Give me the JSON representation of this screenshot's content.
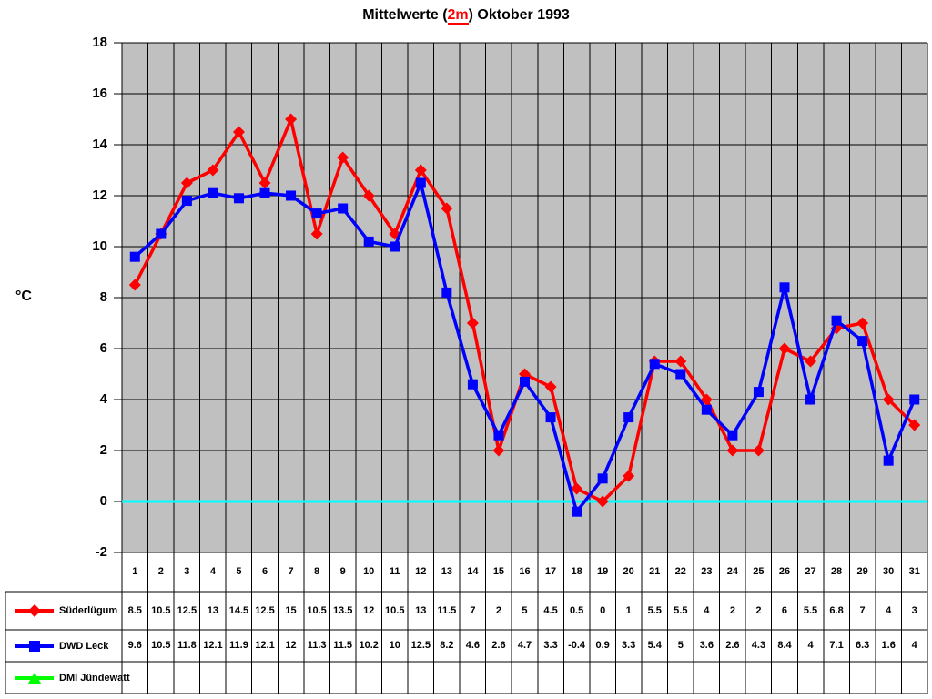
{
  "title": {
    "prefix": "Mittelwerte (",
    "highlight": "2m",
    "suffix": ") Oktober 1993",
    "full": "Mittelwerte (2m) Oktober 1993"
  },
  "chart_data": {
    "type": "line",
    "title": "Mittelwerte (2m) Oktober 1993",
    "xlabel": "",
    "ylabel": "°C",
    "ylim": [
      -2,
      18
    ],
    "ytick_step": 2,
    "yticks": [
      18,
      16,
      14,
      12,
      10,
      8,
      6,
      4,
      2,
      0,
      -2
    ],
    "grid": true,
    "plot_background": "#C0C0C0",
    "grid_color": "#000000",
    "zero_line": {
      "value": 0,
      "color": "#00FFFF"
    },
    "legend_position": "table-left",
    "categories": [
      1,
      2,
      3,
      4,
      5,
      6,
      7,
      8,
      9,
      10,
      11,
      12,
      13,
      14,
      15,
      16,
      17,
      18,
      19,
      20,
      21,
      22,
      23,
      24,
      25,
      26,
      27,
      28,
      29,
      30,
      31
    ],
    "series": [
      {
        "name": "Süderlügum",
        "color": "#FF0000",
        "marker": "diamond",
        "values": [
          8.5,
          10.5,
          12.5,
          13,
          14.5,
          12.5,
          15,
          10.5,
          13.5,
          12,
          10.5,
          13,
          11.5,
          7,
          2,
          5,
          4.5,
          0.5,
          0,
          1,
          5.5,
          5.5,
          4,
          2,
          2,
          6,
          5.5,
          6.8,
          7,
          4,
          3
        ]
      },
      {
        "name": "DWD Leck",
        "color": "#0000FF",
        "marker": "square",
        "values": [
          9.6,
          10.5,
          11.8,
          12.1,
          11.9,
          12.1,
          12,
          11.3,
          11.5,
          10.2,
          10,
          12.5,
          8.2,
          4.6,
          2.6,
          4.7,
          3.3,
          -0.4,
          0.9,
          3.3,
          5.4,
          5,
          3.6,
          2.6,
          4.3,
          8.4,
          4,
          7.1,
          6.3,
          1.6,
          4
        ]
      },
      {
        "name": "DMI Jündewatt",
        "color": "#00FF00",
        "marker": "triangle",
        "values": [
          null,
          null,
          null,
          null,
          null,
          null,
          null,
          null,
          null,
          null,
          null,
          null,
          null,
          null,
          null,
          null,
          null,
          null,
          null,
          null,
          null,
          null,
          null,
          null,
          null,
          null,
          null,
          null,
          null,
          null,
          null
        ]
      }
    ]
  }
}
